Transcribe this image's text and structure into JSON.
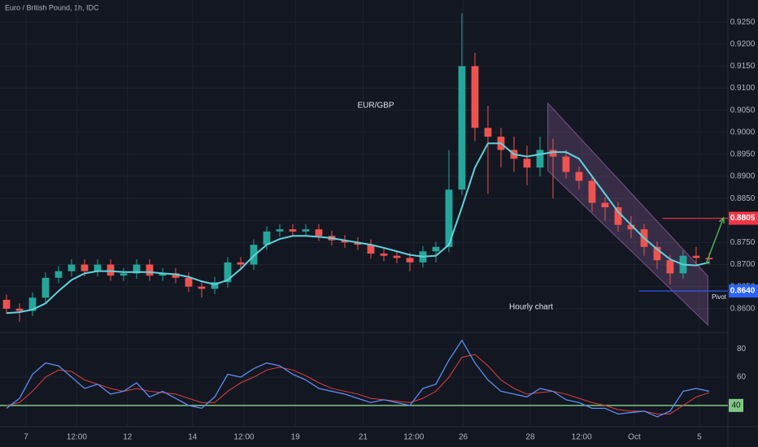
{
  "chart_data": [
    {
      "type": "candlestick",
      "title": "Euro / British Pound, 1h, IDC",
      "annotations": [
        "EUR/GBP",
        "Hourly chart",
        "Pivot"
      ],
      "up_color": "#26a69a",
      "down_color": "#ef5350",
      "open": [
        0.862,
        0.86,
        0.8595,
        0.8625,
        0.867,
        0.8685,
        0.87,
        0.8685,
        0.87,
        0.8675,
        0.868,
        0.87,
        0.8675,
        0.868,
        0.867,
        0.865,
        0.8645,
        0.866,
        0.8705,
        0.87,
        0.8745,
        0.8775,
        0.878,
        0.8775,
        0.878,
        0.8765,
        0.8755,
        0.875,
        0.8745,
        0.8725,
        0.872,
        0.8715,
        0.8705,
        0.873,
        0.874,
        0.887,
        0.915,
        0.901,
        0.899,
        0.896,
        0.894,
        0.892,
        0.896,
        0.8945,
        0.891,
        0.889,
        0.884,
        0.883,
        0.879,
        0.878,
        0.874,
        0.871,
        0.868,
        0.872,
        0.8715
      ],
      "high": [
        0.8632,
        0.8612,
        0.8637,
        0.8682,
        0.8697,
        0.8712,
        0.8712,
        0.8712,
        0.8712,
        0.8692,
        0.8712,
        0.8712,
        0.8692,
        0.8692,
        0.8682,
        0.8662,
        0.8672,
        0.8717,
        0.8717,
        0.8757,
        0.8787,
        0.8792,
        0.8792,
        0.8792,
        0.8792,
        0.8777,
        0.8767,
        0.8762,
        0.8757,
        0.8737,
        0.8732,
        0.8727,
        0.8742,
        0.8752,
        0.896,
        0.927,
        0.918,
        0.906,
        0.901,
        0.899,
        0.897,
        0.899,
        0.8985,
        0.896,
        0.8922,
        0.8902,
        0.8852,
        0.8842,
        0.881,
        0.8792,
        0.8752,
        0.8722,
        0.8732,
        0.874,
        0.8727
      ],
      "low": [
        0.8588,
        0.857,
        0.8583,
        0.8613,
        0.8658,
        0.8673,
        0.8673,
        0.8673,
        0.8663,
        0.8663,
        0.8668,
        0.8663,
        0.8663,
        0.8658,
        0.8638,
        0.8625,
        0.8633,
        0.8648,
        0.8688,
        0.8688,
        0.8733,
        0.8763,
        0.8763,
        0.8763,
        0.8753,
        0.8743,
        0.8738,
        0.8733,
        0.8713,
        0.8708,
        0.8703,
        0.8685,
        0.8693,
        0.8705,
        0.8728,
        0.8858,
        0.898,
        0.886,
        0.892,
        0.891,
        0.888,
        0.89,
        0.885,
        0.8895,
        0.887,
        0.882,
        0.88,
        0.8775,
        0.876,
        0.872,
        0.869,
        0.8655,
        0.8668,
        0.87,
        0.87
      ],
      "close": [
        0.86,
        0.8595,
        0.8625,
        0.867,
        0.8685,
        0.87,
        0.8685,
        0.87,
        0.8675,
        0.868,
        0.87,
        0.8675,
        0.868,
        0.867,
        0.865,
        0.8645,
        0.866,
        0.8705,
        0.87,
        0.8745,
        0.8775,
        0.878,
        0.8775,
        0.878,
        0.8765,
        0.8755,
        0.875,
        0.8745,
        0.8725,
        0.872,
        0.8715,
        0.8705,
        0.873,
        0.874,
        0.887,
        0.915,
        0.901,
        0.899,
        0.896,
        0.894,
        0.892,
        0.896,
        0.8945,
        0.891,
        0.889,
        0.884,
        0.883,
        0.879,
        0.878,
        0.874,
        0.871,
        0.868,
        0.872,
        0.8715,
        0.8712
      ],
      "ma": {
        "color": "#5fd3dc",
        "values": [
          0.859,
          0.8592,
          0.8598,
          0.8612,
          0.864,
          0.8665,
          0.868,
          0.8685,
          0.8685,
          0.8683,
          0.8683,
          0.8683,
          0.868,
          0.8678,
          0.8672,
          0.8662,
          0.8655,
          0.8665,
          0.869,
          0.872,
          0.8745,
          0.8758,
          0.8765,
          0.8765,
          0.8763,
          0.876,
          0.8755,
          0.875,
          0.8745,
          0.8738,
          0.873,
          0.8722,
          0.8718,
          0.872,
          0.8745,
          0.883,
          0.892,
          0.8975,
          0.8975,
          0.895,
          0.8945,
          0.895,
          0.8955,
          0.8955,
          0.894,
          0.89,
          0.886,
          0.882,
          0.879,
          0.876,
          0.8735,
          0.8712,
          0.87,
          0.8698,
          0.8705
        ]
      },
      "channel": {
        "x": [
          41.6,
          53.9
        ],
        "top": [
          0.9066,
          0.8674
        ],
        "bottom": [
          0.8913,
          0.8563
        ],
        "color": "#8e5f9e"
      },
      "levels": [
        {
          "value": 0.8805,
          "from": 50.4,
          "color": "#f23645"
        },
        {
          "value": 0.864,
          "label": "0.8640",
          "from": 48.6,
          "color": "#2962ff"
        }
      ],
      "arrow": {
        "x": [
          53.75,
          55.1
        ],
        "y": [
          0.8701,
          0.8806
        ],
        "color": "#4caf50"
      },
      "xlim": [
        -0.5,
        55.44
      ],
      "xticks": [
        {
          "value": 1.5,
          "label": "7"
        },
        {
          "value": 5.4,
          "label": "12:00"
        },
        {
          "value": 9.3,
          "label": "12"
        },
        {
          "value": 14.3,
          "label": "14"
        },
        {
          "value": 18.25,
          "label": "12:00"
        },
        {
          "value": 22.2,
          "label": "19"
        },
        {
          "value": 27.4,
          "label": "21"
        },
        {
          "value": 31.3,
          "label": "12:00"
        },
        {
          "value": 35.1,
          "label": "26"
        },
        {
          "value": 40.25,
          "label": "28"
        },
        {
          "value": 44.2,
          "label": "12:00"
        },
        {
          "value": 48.25,
          "label": "Oct"
        },
        {
          "value": 53.25,
          "label": "5"
        }
      ],
      "ylim": [
        0.8548,
        0.93
      ],
      "yticks": [
        {
          "value": 0.86,
          "label": "0.8600"
        },
        {
          "value": 0.865,
          "label": "0.8650"
        },
        {
          "value": 0.87,
          "label": "0.8700"
        },
        {
          "value": 0.875,
          "label": "0.8750"
        },
        {
          "value": 0.88,
          "label": "0.8800"
        },
        {
          "value": 0.885,
          "label": "0.8850"
        },
        {
          "value": 0.89,
          "label": "0.8900"
        },
        {
          "value": 0.895,
          "label": "0.8950"
        },
        {
          "value": 0.9,
          "label": "0.9000"
        },
        {
          "value": 0.905,
          "label": "0.9050"
        },
        {
          "value": 0.91,
          "label": "0.9100"
        },
        {
          "value": 0.915,
          "label": "0.9150"
        },
        {
          "value": 0.92,
          "label": "0.9200"
        },
        {
          "value": 0.925,
          "label": "0.9250"
        }
      ],
      "grid": true
    },
    {
      "type": "line",
      "rsi": {
        "color": "#5b8def",
        "values": [
          38,
          45,
          62,
          70,
          68,
          60,
          52,
          55,
          48,
          50,
          56,
          46,
          50,
          45,
          40,
          38,
          46,
          62,
          60,
          66,
          70,
          68,
          62,
          58,
          52,
          50,
          48,
          45,
          42,
          44,
          42,
          40,
          52,
          55,
          72,
          86,
          70,
          58,
          50,
          48,
          46,
          52,
          50,
          44,
          42,
          38,
          38,
          34,
          35,
          36,
          32,
          36,
          50,
          52,
          50
        ]
      },
      "signal": {
        "color": "#e0403a",
        "values": [
          40,
          42,
          50,
          60,
          65,
          64,
          58,
          55,
          52,
          50,
          52,
          50,
          49,
          48,
          45,
          42,
          42,
          50,
          56,
          60,
          65,
          67,
          65,
          61,
          56,
          52,
          50,
          48,
          45,
          44,
          43,
          42,
          45,
          50,
          60,
          74,
          76,
          68,
          58,
          52,
          48,
          49,
          50,
          48,
          45,
          42,
          40,
          37,
          36,
          36,
          34,
          34,
          40,
          46,
          49
        ]
      },
      "level": 40,
      "level_color": "#81c784",
      "ylim": [
        25,
        91
      ],
      "yticks": [
        60,
        80
      ]
    }
  ]
}
